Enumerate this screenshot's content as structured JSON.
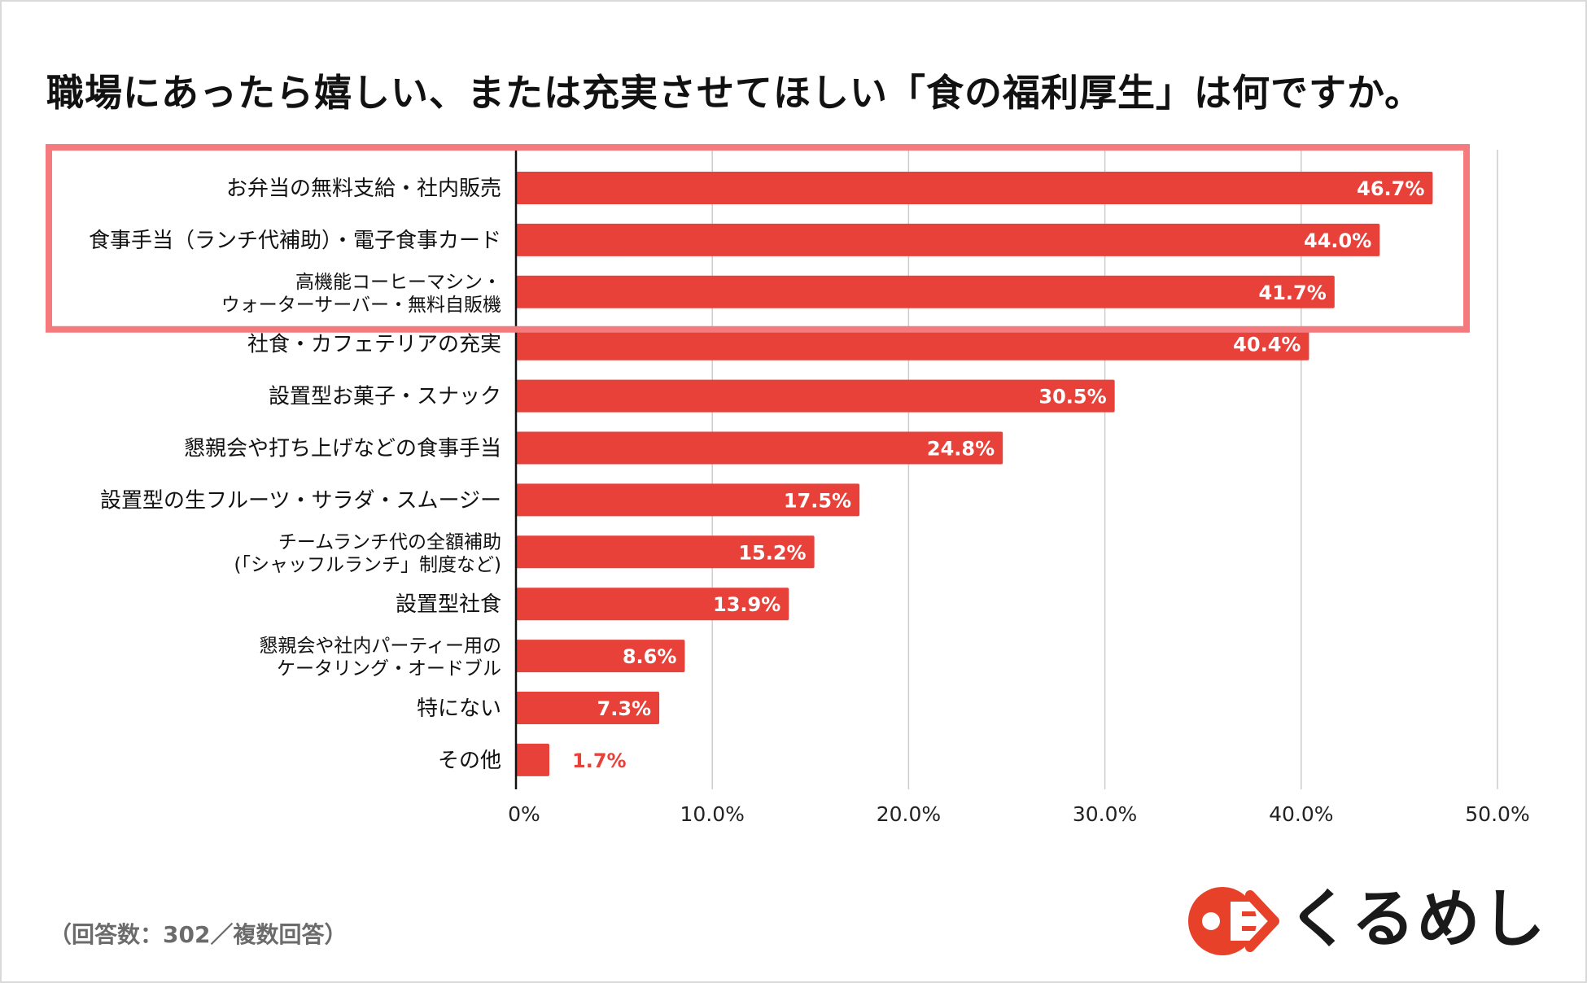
{
  "title": "職場にあったら嬉しい、または充実させてほしい「食の福利厚生」は何ですか。",
  "footnote": "（回答数：302／複数回答）",
  "brand": {
    "name": "くるめし",
    "logo_color": "#e8412a"
  },
  "colors": {
    "bar": "#e8413a",
    "highlight_box": "#f47a7e",
    "grid": "#cccccc",
    "axis": "#111111"
  },
  "highlight_box": {
    "label": "top-3-highlight",
    "covers_items": 3
  },
  "chart_data": {
    "type": "bar",
    "orientation": "horizontal",
    "title": "職場にあったら嬉しい、または充実させてほしい「食の福利厚生」は何ですか。",
    "xlabel": "",
    "ylabel": "",
    "xlim": [
      0,
      50
    ],
    "grid": true,
    "x_ticks": [
      "0%",
      "10.0%",
      "20.0%",
      "30.0%",
      "40.0%",
      "50.0%"
    ],
    "categories": [
      [
        "お弁当の無料支給・社内販売"
      ],
      [
        "食事手当（ランチ代補助）・電子食事カード"
      ],
      [
        "高機能コーヒーマシン・",
        "ウォーターサーバー・無料自販機"
      ],
      [
        "社食・カフェテリアの充実"
      ],
      [
        "設置型お菓子・スナック"
      ],
      [
        "懇親会や打ち上げなどの食事手当"
      ],
      [
        "設置型の生フルーツ・サラダ・スムージー"
      ],
      [
        "チームランチ代の全額補助",
        "(「シャッフルランチ」制度など)"
      ],
      [
        "設置型社食"
      ],
      [
        "懇親会や社内パーティー用の",
        "ケータリング・オードブル"
      ],
      [
        "特にない"
      ],
      [
        "その他"
      ]
    ],
    "values": [
      46.7,
      44.0,
      41.7,
      40.4,
      30.5,
      24.8,
      17.5,
      15.2,
      13.9,
      8.6,
      7.3,
      1.7
    ],
    "value_labels": [
      "46.7%",
      "44.0%",
      "41.7%",
      "40.4%",
      "30.5%",
      "24.8%",
      "17.5%",
      "15.2%",
      "13.9%",
      "8.6%",
      "7.3%",
      "1.7%"
    ]
  }
}
